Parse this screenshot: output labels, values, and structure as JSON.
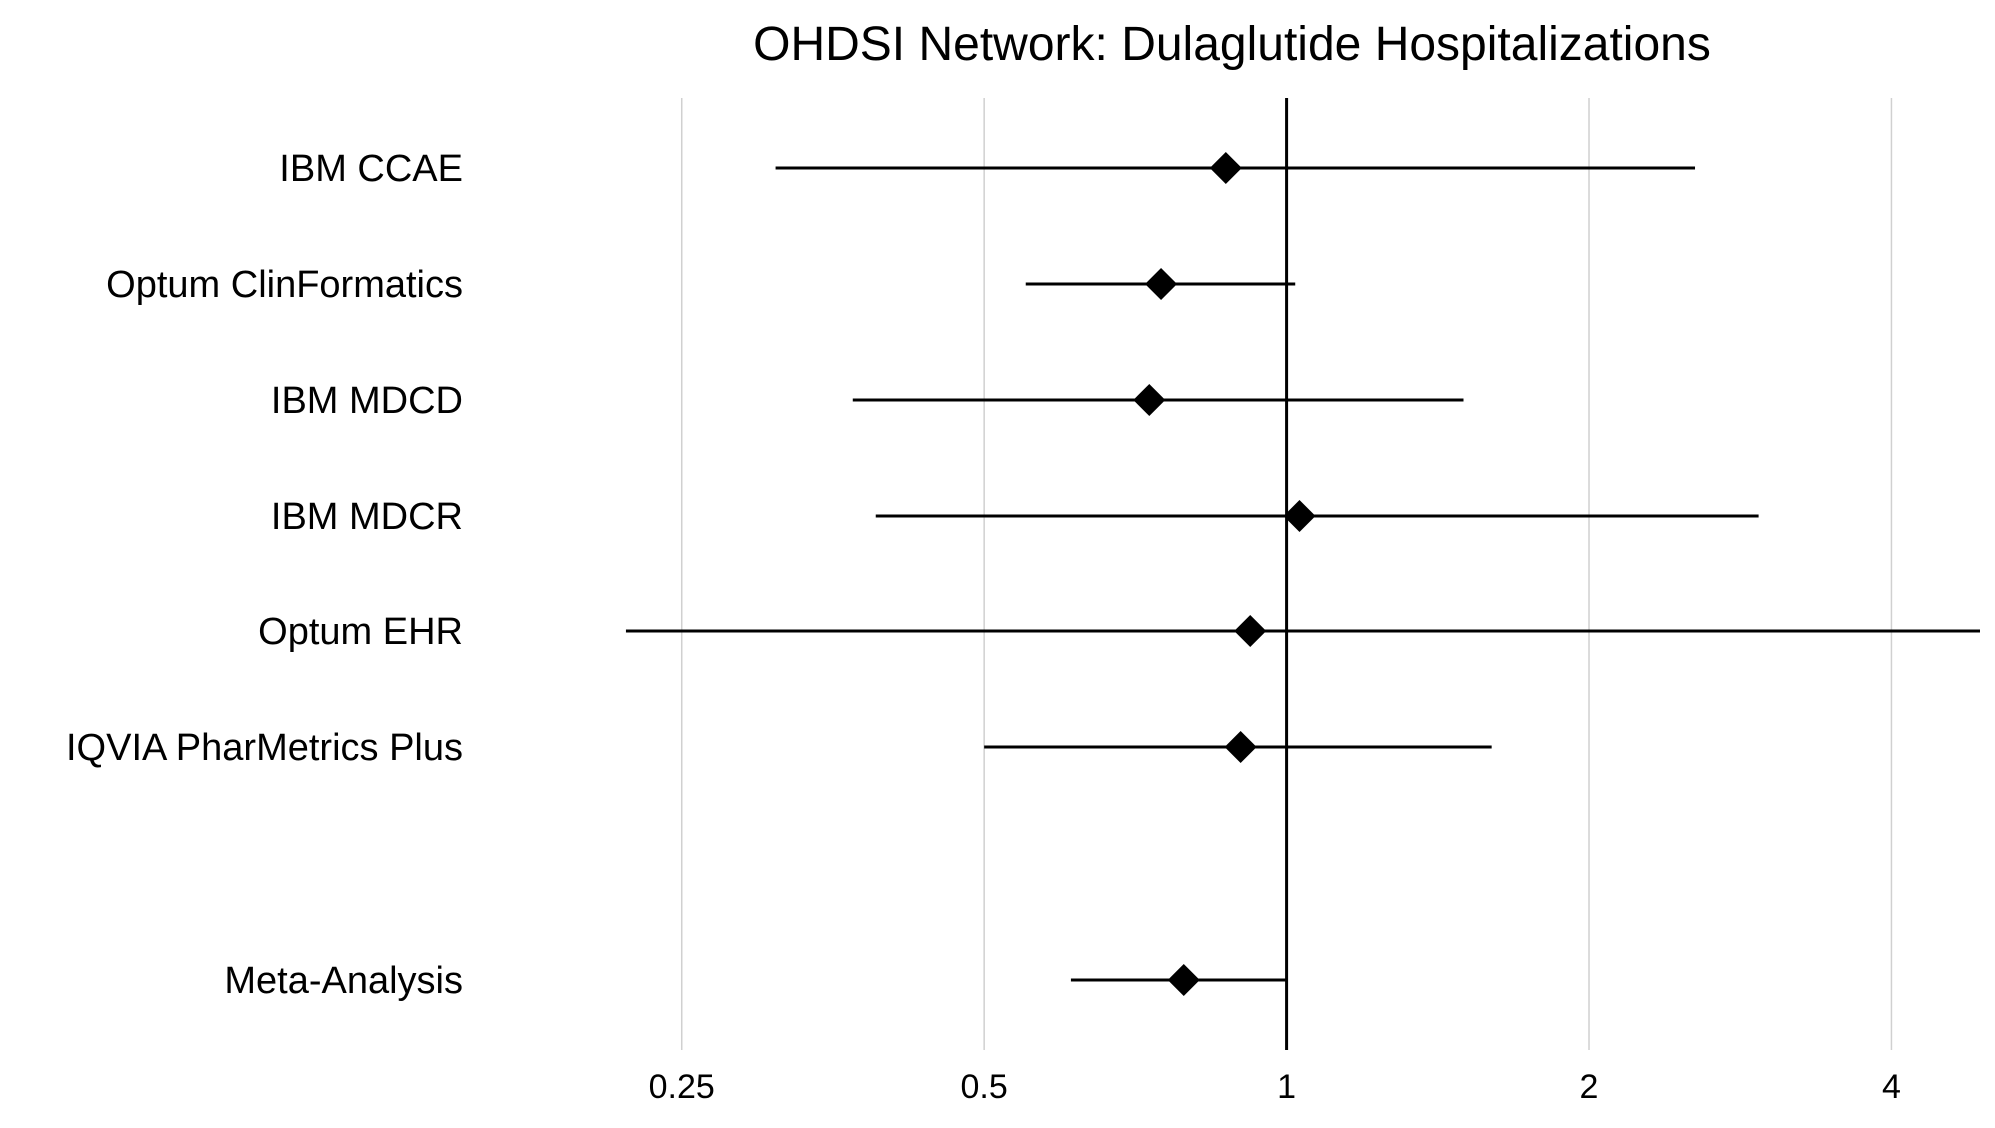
{
  "chart_data": {
    "type": "forest",
    "title": "OHDSI Network: Dulaglutide Hospitalizations",
    "xlabel": "",
    "ylabel": "",
    "x_scale": "log2",
    "xlim": [
      0.16,
      4.9
    ],
    "x_ticks": [
      0.25,
      0.5,
      1,
      2,
      4
    ],
    "x_tick_labels": [
      "0.25",
      "0.5",
      "1",
      "2",
      "4"
    ],
    "reference_line": 1,
    "grid": "vertical",
    "rows": [
      {
        "label": "IBM CCAE",
        "estimate": 0.87,
        "lower": 0.31,
        "upper": 2.55
      },
      {
        "label": "Optum ClinFormatics",
        "estimate": 0.75,
        "lower": 0.55,
        "upper": 1.02
      },
      {
        "label": "IBM MDCD",
        "estimate": 0.73,
        "lower": 0.37,
        "upper": 1.5
      },
      {
        "label": "IBM MDCR",
        "estimate": 1.03,
        "lower": 0.39,
        "upper": 2.95
      },
      {
        "label": "Optum EHR",
        "estimate": 0.92,
        "lower": 0.22,
        "upper": 5.0
      },
      {
        "label": "IQVIA PharMetrics Plus",
        "estimate": 0.9,
        "lower": 0.5,
        "upper": 1.6
      },
      {
        "label": "Meta-Analysis",
        "estimate": 0.79,
        "lower": 0.61,
        "upper": 1.0
      }
    ]
  }
}
